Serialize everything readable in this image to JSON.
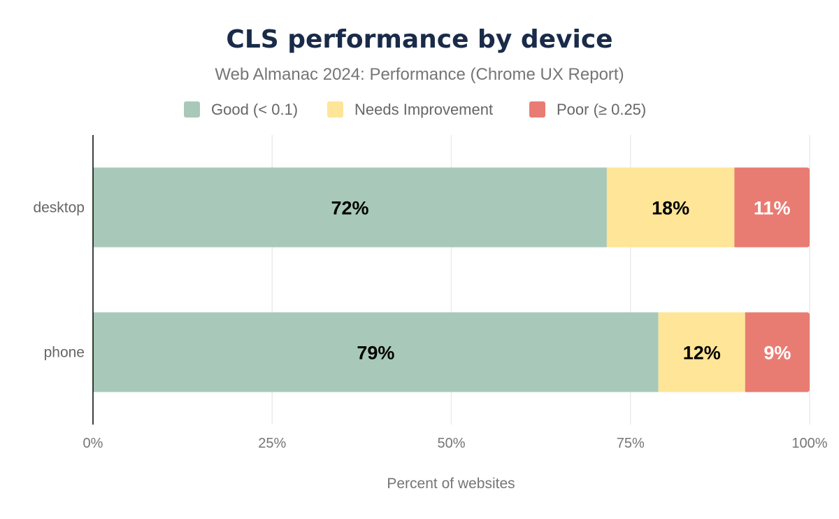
{
  "chart_data": {
    "type": "bar",
    "orientation": "horizontal",
    "stacked": true,
    "title": "CLS performance by device",
    "subtitle": "Web Almanac 2024: Performance (Chrome UX Report)",
    "xlabel": "Percent of websites",
    "ylabel": "",
    "xlim": [
      0,
      100
    ],
    "x_ticks": [
      "0%",
      "25%",
      "50%",
      "75%",
      "100%"
    ],
    "grid": true,
    "legend_position": "top",
    "categories": [
      "desktop",
      "phone"
    ],
    "series": [
      {
        "name": "Good (< 0.1)",
        "color": "#a8c9b9",
        "label_color": "#000000",
        "values": [
          71.7,
          78.9
        ],
        "labels": [
          "72%",
          "79%"
        ]
      },
      {
        "name": "Needs Improvement",
        "color": "#fee597",
        "label_color": "#000000",
        "values": [
          17.8,
          12.1
        ],
        "labels": [
          "18%",
          "12%"
        ]
      },
      {
        "name": "Poor (≥ 0.25)",
        "color": "#e87c73",
        "label_color": "#ffffff",
        "values": [
          10.5,
          9.0
        ],
        "labels": [
          "11%",
          "9%"
        ]
      }
    ]
  }
}
